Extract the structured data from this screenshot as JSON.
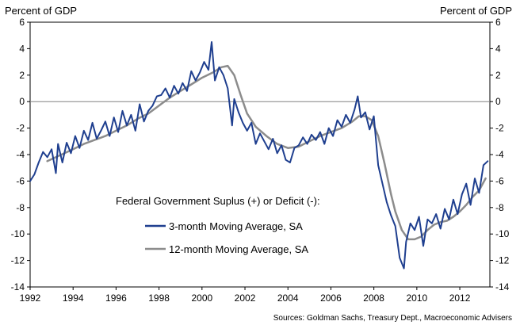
{
  "chart_data": {
    "type": "line",
    "unit_left": "Percent of GDP",
    "unit_right": "Percent of GDP",
    "ylim": [
      -14,
      6
    ],
    "yticks": [
      6,
      4,
      2,
      0,
      -2,
      -4,
      -6,
      -8,
      -10,
      -12,
      -14
    ],
    "xlim": [
      1992,
      2013.4
    ],
    "xticks": [
      1992,
      1994,
      1996,
      1998,
      2000,
      2002,
      2004,
      2006,
      2008,
      2010,
      2012
    ],
    "legend_title": "Federal Government Suplus (+) or Deficit (-):",
    "source": "Sources: Goldman Sachs, Treasury Dept., Macroeconomic Advisers",
    "colors": {
      "series_3m": "#1f3f8f",
      "series_12m": "#8c8c8c",
      "zero_line": "#808080"
    },
    "series": [
      {
        "name": "3-month Moving Average, SA",
        "key": "series_3m",
        "x": [
          1992.0,
          1992.2,
          1992.4,
          1992.6,
          1992.8,
          1993.0,
          1993.2,
          1993.3,
          1993.5,
          1993.7,
          1993.9,
          1994.1,
          1994.3,
          1994.5,
          1994.7,
          1994.9,
          1995.1,
          1995.3,
          1995.5,
          1995.7,
          1995.9,
          1996.1,
          1996.3,
          1996.5,
          1996.7,
          1996.9,
          1997.1,
          1997.3,
          1997.5,
          1997.7,
          1997.9,
          1998.1,
          1998.3,
          1998.5,
          1998.7,
          1998.9,
          1999.1,
          1999.3,
          1999.5,
          1999.7,
          1999.9,
          2000.1,
          2000.3,
          2000.45,
          2000.6,
          2000.8,
          2001.0,
          2001.2,
          2001.4,
          2001.5,
          2001.7,
          2001.9,
          2002.1,
          2002.3,
          2002.5,
          2002.7,
          2002.9,
          2003.1,
          2003.3,
          2003.5,
          2003.7,
          2003.9,
          2004.1,
          2004.3,
          2004.5,
          2004.7,
          2004.9,
          2005.1,
          2005.3,
          2005.5,
          2005.7,
          2005.9,
          2006.1,
          2006.3,
          2006.5,
          2006.7,
          2006.9,
          2007.1,
          2007.25,
          2007.4,
          2007.6,
          2007.8,
          2008.0,
          2008.2,
          2008.4,
          2008.6,
          2008.8,
          2009.0,
          2009.2,
          2009.4,
          2009.5,
          2009.7,
          2009.9,
          2010.1,
          2010.3,
          2010.5,
          2010.7,
          2010.9,
          2011.1,
          2011.3,
          2011.5,
          2011.7,
          2011.9,
          2012.1,
          2012.3,
          2012.5,
          2012.7,
          2012.9,
          2013.1,
          2013.3
        ],
        "y": [
          -6.0,
          -5.5,
          -4.6,
          -3.8,
          -4.2,
          -3.6,
          -5.4,
          -3.2,
          -4.6,
          -3.1,
          -3.9,
          -2.6,
          -3.5,
          -2.2,
          -2.9,
          -1.6,
          -2.8,
          -2.2,
          -1.5,
          -2.6,
          -1.2,
          -2.3,
          -0.7,
          -1.8,
          -1.0,
          -2.2,
          -0.2,
          -1.5,
          -0.7,
          -0.3,
          0.4,
          0.5,
          1.0,
          0.3,
          1.2,
          0.6,
          1.4,
          0.8,
          2.3,
          1.6,
          2.2,
          3.0,
          2.4,
          4.5,
          1.6,
          2.6,
          2.0,
          1.0,
          -1.8,
          0.2,
          -0.8,
          -1.6,
          -2.2,
          -1.6,
          -3.2,
          -2.4,
          -3.0,
          -3.6,
          -2.8,
          -3.9,
          -3.3,
          -4.4,
          -4.6,
          -3.5,
          -3.3,
          -2.7,
          -3.2,
          -2.5,
          -2.9,
          -2.3,
          -3.2,
          -2.0,
          -2.6,
          -1.4,
          -1.9,
          -1.0,
          -1.6,
          -0.6,
          0.4,
          -1.2,
          -0.8,
          -2.1,
          -1.1,
          -4.8,
          -6.2,
          -7.6,
          -8.6,
          -9.4,
          -11.8,
          -12.6,
          -10.6,
          -9.2,
          -9.7,
          -8.7,
          -10.9,
          -8.9,
          -9.2,
          -8.5,
          -9.6,
          -8.1,
          -8.9,
          -7.4,
          -8.5,
          -7.0,
          -6.2,
          -7.8,
          -5.8,
          -6.9,
          -4.8,
          -4.5
        ]
      },
      {
        "name": "12-month Moving Average, SA",
        "key": "series_12m",
        "x": [
          1992.8,
          1993.2,
          1993.6,
          1994.0,
          1994.5,
          1995.0,
          1995.5,
          1996.0,
          1996.5,
          1997.0,
          1997.5,
          1998.0,
          1998.5,
          1999.0,
          1999.5,
          2000.0,
          2000.5,
          2000.9,
          2001.2,
          2001.5,
          2001.8,
          2002.1,
          2002.5,
          2003.0,
          2003.5,
          2004.0,
          2004.5,
          2005.0,
          2005.5,
          2006.0,
          2006.5,
          2007.0,
          2007.3,
          2007.6,
          2007.9,
          2008.2,
          2008.5,
          2008.8,
          2009.0,
          2009.3,
          2009.6,
          2009.9,
          2010.2,
          2010.5,
          2010.8,
          2011.1,
          2011.4,
          2011.7,
          2012.0,
          2012.3,
          2012.6,
          2012.9,
          2013.2
        ],
        "y": [
          -4.5,
          -4.2,
          -3.9,
          -3.6,
          -3.2,
          -2.9,
          -2.6,
          -2.2,
          -1.8,
          -1.3,
          -0.9,
          -0.3,
          0.3,
          0.8,
          1.3,
          1.8,
          2.2,
          2.6,
          2.7,
          2.0,
          0.5,
          -0.9,
          -1.9,
          -2.6,
          -3.2,
          -3.5,
          -3.4,
          -3.0,
          -2.6,
          -2.3,
          -2.0,
          -1.5,
          -1.1,
          -1.1,
          -1.4,
          -2.6,
          -4.7,
          -7.0,
          -8.3,
          -9.7,
          -10.4,
          -10.4,
          -10.2,
          -9.7,
          -9.3,
          -9.1,
          -9.0,
          -8.7,
          -8.3,
          -7.8,
          -7.2,
          -6.7,
          -5.8
        ]
      }
    ]
  }
}
